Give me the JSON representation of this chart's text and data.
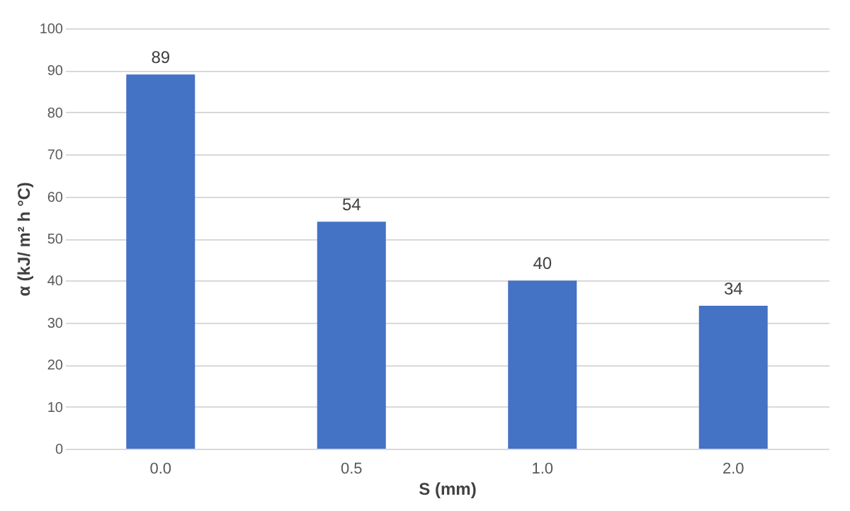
{
  "chart_data": {
    "type": "bar",
    "xlabel": "S (mm)",
    "ylabel": "α (kJ/ m² h °C)",
    "categories": [
      "0.0",
      "0.5",
      "1.0",
      "2.0"
    ],
    "values": [
      89,
      54,
      40,
      34
    ],
    "color": "#4472c4",
    "ylim": [
      0,
      100
    ],
    "yticks": [
      0,
      10,
      20,
      30,
      40,
      50,
      60,
      70,
      80,
      90,
      100
    ],
    "grid": "y",
    "data_labels": true
  }
}
